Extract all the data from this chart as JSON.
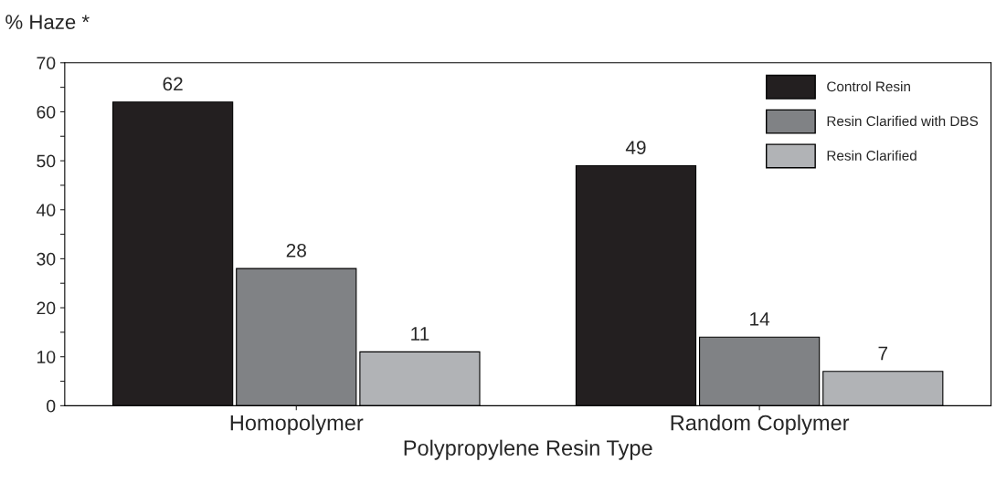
{
  "chart_data": {
    "type": "bar",
    "ylabel": "% Haze *",
    "xlabel": "Polypropylene Resin Type",
    "categories": [
      "Homopolymer",
      "Random Coplymer"
    ],
    "series": [
      {
        "name": "Control Resin",
        "color": "#231f20",
        "values": [
          62,
          49
        ]
      },
      {
        "name": "Resin Clarified with DBS",
        "color": "#808285",
        "values": [
          28,
          14
        ]
      },
      {
        "name": "Resin Clarified",
        "color": "#b1b3b6",
        "values": [
          11,
          7
        ]
      }
    ],
    "data_labels": true,
    "ylim": [
      0,
      70
    ],
    "yticks": [
      0,
      {
        "value": 5,
        "label": null
      },
      10,
      {
        "value": 15,
        "label": null
      },
      20,
      {
        "value": 25,
        "label": null
      },
      30,
      {
        "value": 35,
        "label": null
      },
      40,
      {
        "value": 45,
        "label": null
      },
      50,
      {
        "value": 55,
        "label": null
      },
      60,
      {
        "value": 65,
        "label": null
      },
      70
    ],
    "grid": false,
    "legend": "top right"
  }
}
